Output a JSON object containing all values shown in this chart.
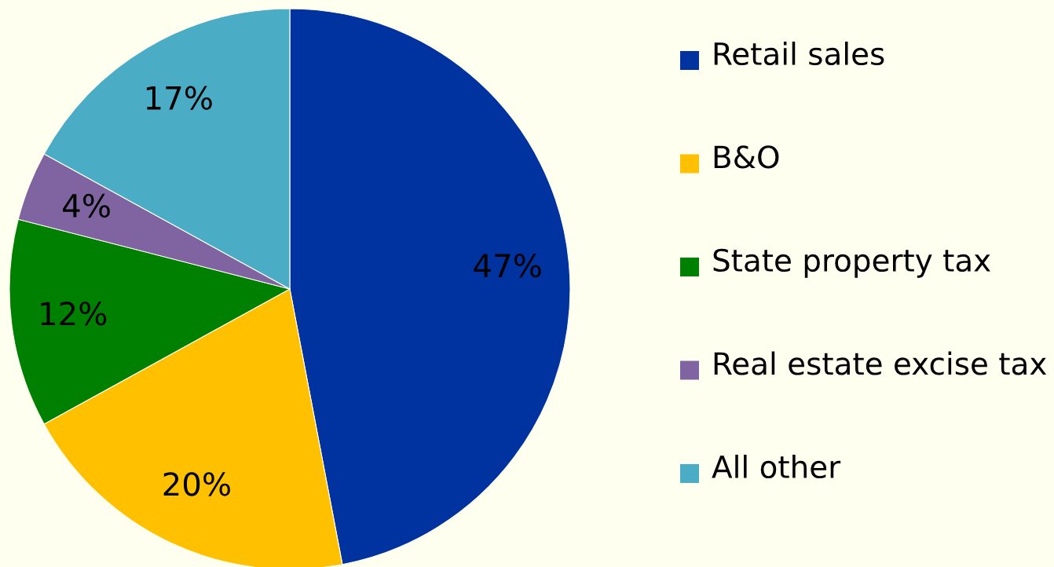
{
  "chart_data": {
    "type": "pie",
    "categories": [
      "Retail sales",
      "B&O",
      "State property tax",
      "Real estate excise tax",
      "All other"
    ],
    "values": [
      47,
      20,
      12,
      4,
      17
    ],
    "colors": [
      "#0033a0",
      "#ffc000",
      "#008000",
      "#8064a2",
      "#4bacc6"
    ],
    "value_labels": [
      "47%",
      "20%",
      "12%",
      "4%",
      "17%"
    ],
    "legend": "right"
  }
}
